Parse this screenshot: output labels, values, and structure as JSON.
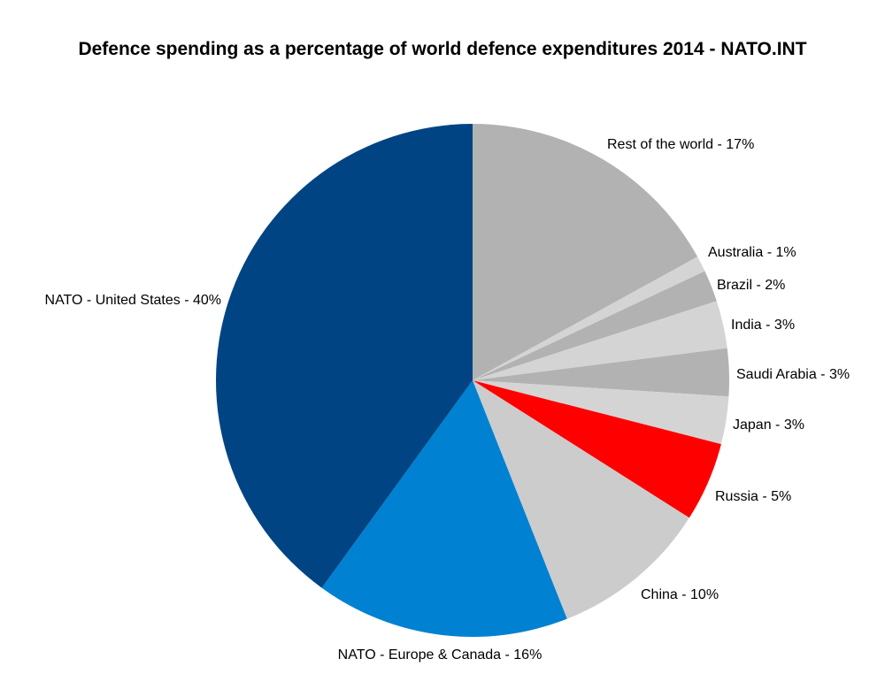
{
  "chart_data": {
    "type": "pie",
    "title": "Defence spending as a percentage of world defence expenditures 2014 - NATO.INT",
    "slices": [
      {
        "label": "Rest of the world - 17%",
        "value": 17,
        "color": "#b2b2b2"
      },
      {
        "label": "Australia - 1%",
        "value": 1,
        "color": "#d4d4d4"
      },
      {
        "label": "Brazil - 2%",
        "value": 2,
        "color": "#b2b2b2"
      },
      {
        "label": "India - 3%",
        "value": 3,
        "color": "#d4d4d4"
      },
      {
        "label": "Saudi Arabia - 3%",
        "value": 3,
        "color": "#b2b2b2"
      },
      {
        "label": "Japan - 3%",
        "value": 3,
        "color": "#d4d4d4"
      },
      {
        "label": "Russia - 5%",
        "value": 5,
        "color": "#ff0000"
      },
      {
        "label": "China -  10%",
        "value": 10,
        "color": "#cccccc"
      },
      {
        "label": "NATO - Europe & Canada - 16%",
        "value": 16,
        "color": "#0081d1"
      },
      {
        "label": "NATO - United States - 40%",
        "value": 40,
        "color": "#004484"
      }
    ]
  }
}
